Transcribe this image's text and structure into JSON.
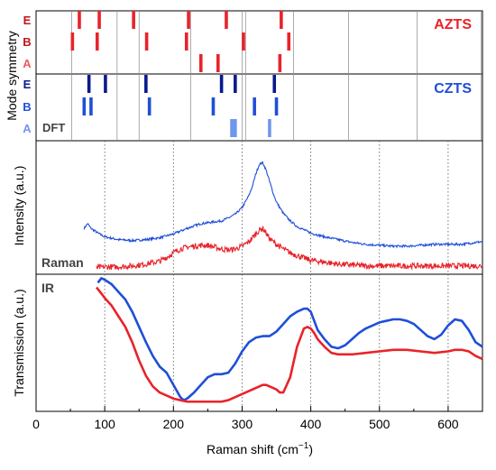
{
  "chart_data": {
    "type": "composite",
    "x_axis": {
      "label": "Raman shift (cm",
      "label_sup": "−1",
      "label_close": ")",
      "min": 0,
      "max": 650,
      "ticks": [
        0,
        100,
        200,
        300,
        400,
        500,
        600
      ],
      "minor_step": 50
    },
    "symmetry_panel": {
      "ylabel": "Mode symmetry",
      "dft_label": "DFT",
      "groups": [
        {
          "name": "AZTS",
          "color": "#e8232a",
          "rows": [
            {
              "label": "E",
              "modes": [
                63,
                92,
                142,
                222,
                277,
                357
              ]
            },
            {
              "label": "B",
              "modes": [
                53,
                89,
                161,
                219,
                302,
                368
              ]
            },
            {
              "label": "A",
              "modes": [
                240,
                265,
                355
              ]
            }
          ]
        },
        {
          "name": "CZTS",
          "color": "#1f4fd8",
          "dark_color": "#0a1a8c",
          "rows": [
            {
              "label": "E",
              "modes": [
                77,
                101,
                160,
                270,
                290,
                347
              ]
            },
            {
              "label": "B",
              "modes": [
                70,
                80,
                165,
                258,
                318,
                350
              ]
            },
            {
              "label": "A",
              "modes": [
                285,
                288,
                290,
                340
              ]
            }
          ]
        }
      ],
      "dft_lines": [
        52,
        118,
        150,
        225,
        300,
        305,
        375,
        455,
        555,
        648
      ]
    },
    "raman_panel": {
      "ylabel": "Intensity (a.u.)",
      "label": "Raman",
      "series": [
        {
          "name": "CZTS",
          "color": "#1f4fd8",
          "x": [
            70,
            75,
            80,
            90,
            100,
            120,
            140,
            160,
            180,
            200,
            220,
            240,
            260,
            270,
            280,
            290,
            300,
            310,
            315,
            320,
            325,
            330,
            335,
            340,
            345,
            350,
            360,
            370,
            380,
            400,
            420,
            440,
            460,
            480,
            500,
            520,
            540,
            560,
            580,
            600,
            620,
            640,
            650
          ],
          "y": [
            0.3,
            0.35,
            0.3,
            0.25,
            0.21,
            0.18,
            0.17,
            0.18,
            0.2,
            0.24,
            0.3,
            0.35,
            0.37,
            0.38,
            0.41,
            0.45,
            0.52,
            0.65,
            0.75,
            0.88,
            0.98,
            1.0,
            0.92,
            0.8,
            0.68,
            0.58,
            0.46,
            0.38,
            0.32,
            0.25,
            0.21,
            0.18,
            0.15,
            0.13,
            0.12,
            0.11,
            0.11,
            0.12,
            0.13,
            0.13,
            0.13,
            0.15,
            0.16
          ]
        },
        {
          "name": "AZTS",
          "color": "#e8232a",
          "x": [
            88,
            100,
            120,
            140,
            160,
            180,
            190,
            200,
            210,
            220,
            230,
            240,
            250,
            260,
            270,
            280,
            290,
            300,
            310,
            320,
            325,
            330,
            335,
            340,
            350,
            360,
            370,
            380,
            400,
            420,
            440,
            460,
            480,
            500,
            520,
            540,
            560,
            580,
            600,
            620,
            640,
            650
          ],
          "y": [
            -0.12,
            -0.11,
            -0.11,
            -0.1,
            -0.08,
            -0.05,
            -0.01,
            0.04,
            0.08,
            0.1,
            0.11,
            0.12,
            0.12,
            0.1,
            0.08,
            0.07,
            0.08,
            0.11,
            0.16,
            0.24,
            0.28,
            0.3,
            0.25,
            0.19,
            0.13,
            0.08,
            0.04,
            0.01,
            -0.04,
            -0.06,
            -0.08,
            -0.09,
            -0.1,
            -0.1,
            -0.1,
            -0.1,
            -0.1,
            -0.1,
            -0.1,
            -0.1,
            -0.1,
            -0.1
          ]
        }
      ]
    },
    "ir_panel": {
      "ylabel": "Transmission (a.u.)",
      "label": "IR",
      "series": [
        {
          "name": "CZTS",
          "color": "#1f4fd8",
          "x": [
            90,
            95,
            100,
            110,
            120,
            130,
            140,
            150,
            160,
            170,
            180,
            190,
            200,
            210,
            215,
            220,
            230,
            240,
            250,
            260,
            270,
            280,
            290,
            300,
            310,
            320,
            330,
            340,
            350,
            360,
            370,
            380,
            390,
            395,
            400,
            405,
            410,
            420,
            430,
            440,
            450,
            460,
            470,
            480,
            490,
            500,
            510,
            520,
            530,
            540,
            550,
            560,
            570,
            580,
            590,
            600,
            610,
            620,
            630,
            640,
            650
          ],
          "y": [
            0.97,
            1.0,
            0.99,
            0.96,
            0.91,
            0.86,
            0.78,
            0.68,
            0.58,
            0.49,
            0.42,
            0.38,
            0.3,
            0.22,
            0.2,
            0.21,
            0.25,
            0.3,
            0.35,
            0.37,
            0.37,
            0.38,
            0.44,
            0.52,
            0.58,
            0.61,
            0.62,
            0.62,
            0.65,
            0.7,
            0.75,
            0.78,
            0.8,
            0.8,
            0.78,
            0.72,
            0.66,
            0.6,
            0.55,
            0.54,
            0.56,
            0.6,
            0.64,
            0.67,
            0.69,
            0.71,
            0.72,
            0.73,
            0.73,
            0.72,
            0.7,
            0.66,
            0.62,
            0.6,
            0.63,
            0.69,
            0.73,
            0.72,
            0.66,
            0.58,
            0.55
          ]
        },
        {
          "name": "AZTS",
          "color": "#e8232a",
          "x": [
            88,
            95,
            100,
            110,
            120,
            130,
            140,
            150,
            160,
            170,
            180,
            190,
            200,
            210,
            220,
            230,
            240,
            250,
            260,
            270,
            280,
            290,
            300,
            310,
            320,
            330,
            335,
            340,
            350,
            355,
            360,
            370,
            380,
            390,
            395,
            400,
            405,
            410,
            420,
            430,
            440,
            450,
            460,
            480,
            500,
            520,
            540,
            560,
            580,
            600,
            610,
            620,
            630,
            640,
            650
          ],
          "y": [
            0.94,
            0.9,
            0.87,
            0.82,
            0.75,
            0.68,
            0.58,
            0.46,
            0.36,
            0.29,
            0.25,
            0.23,
            0.21,
            0.2,
            0.19,
            0.19,
            0.19,
            0.19,
            0.19,
            0.19,
            0.2,
            0.22,
            0.24,
            0.26,
            0.28,
            0.3,
            0.3,
            0.29,
            0.27,
            0.25,
            0.25,
            0.35,
            0.55,
            0.67,
            0.68,
            0.67,
            0.64,
            0.6,
            0.55,
            0.51,
            0.5,
            0.5,
            0.5,
            0.51,
            0.52,
            0.53,
            0.53,
            0.52,
            0.51,
            0.52,
            0.53,
            0.53,
            0.52,
            0.49,
            0.47
          ]
        }
      ]
    }
  }
}
